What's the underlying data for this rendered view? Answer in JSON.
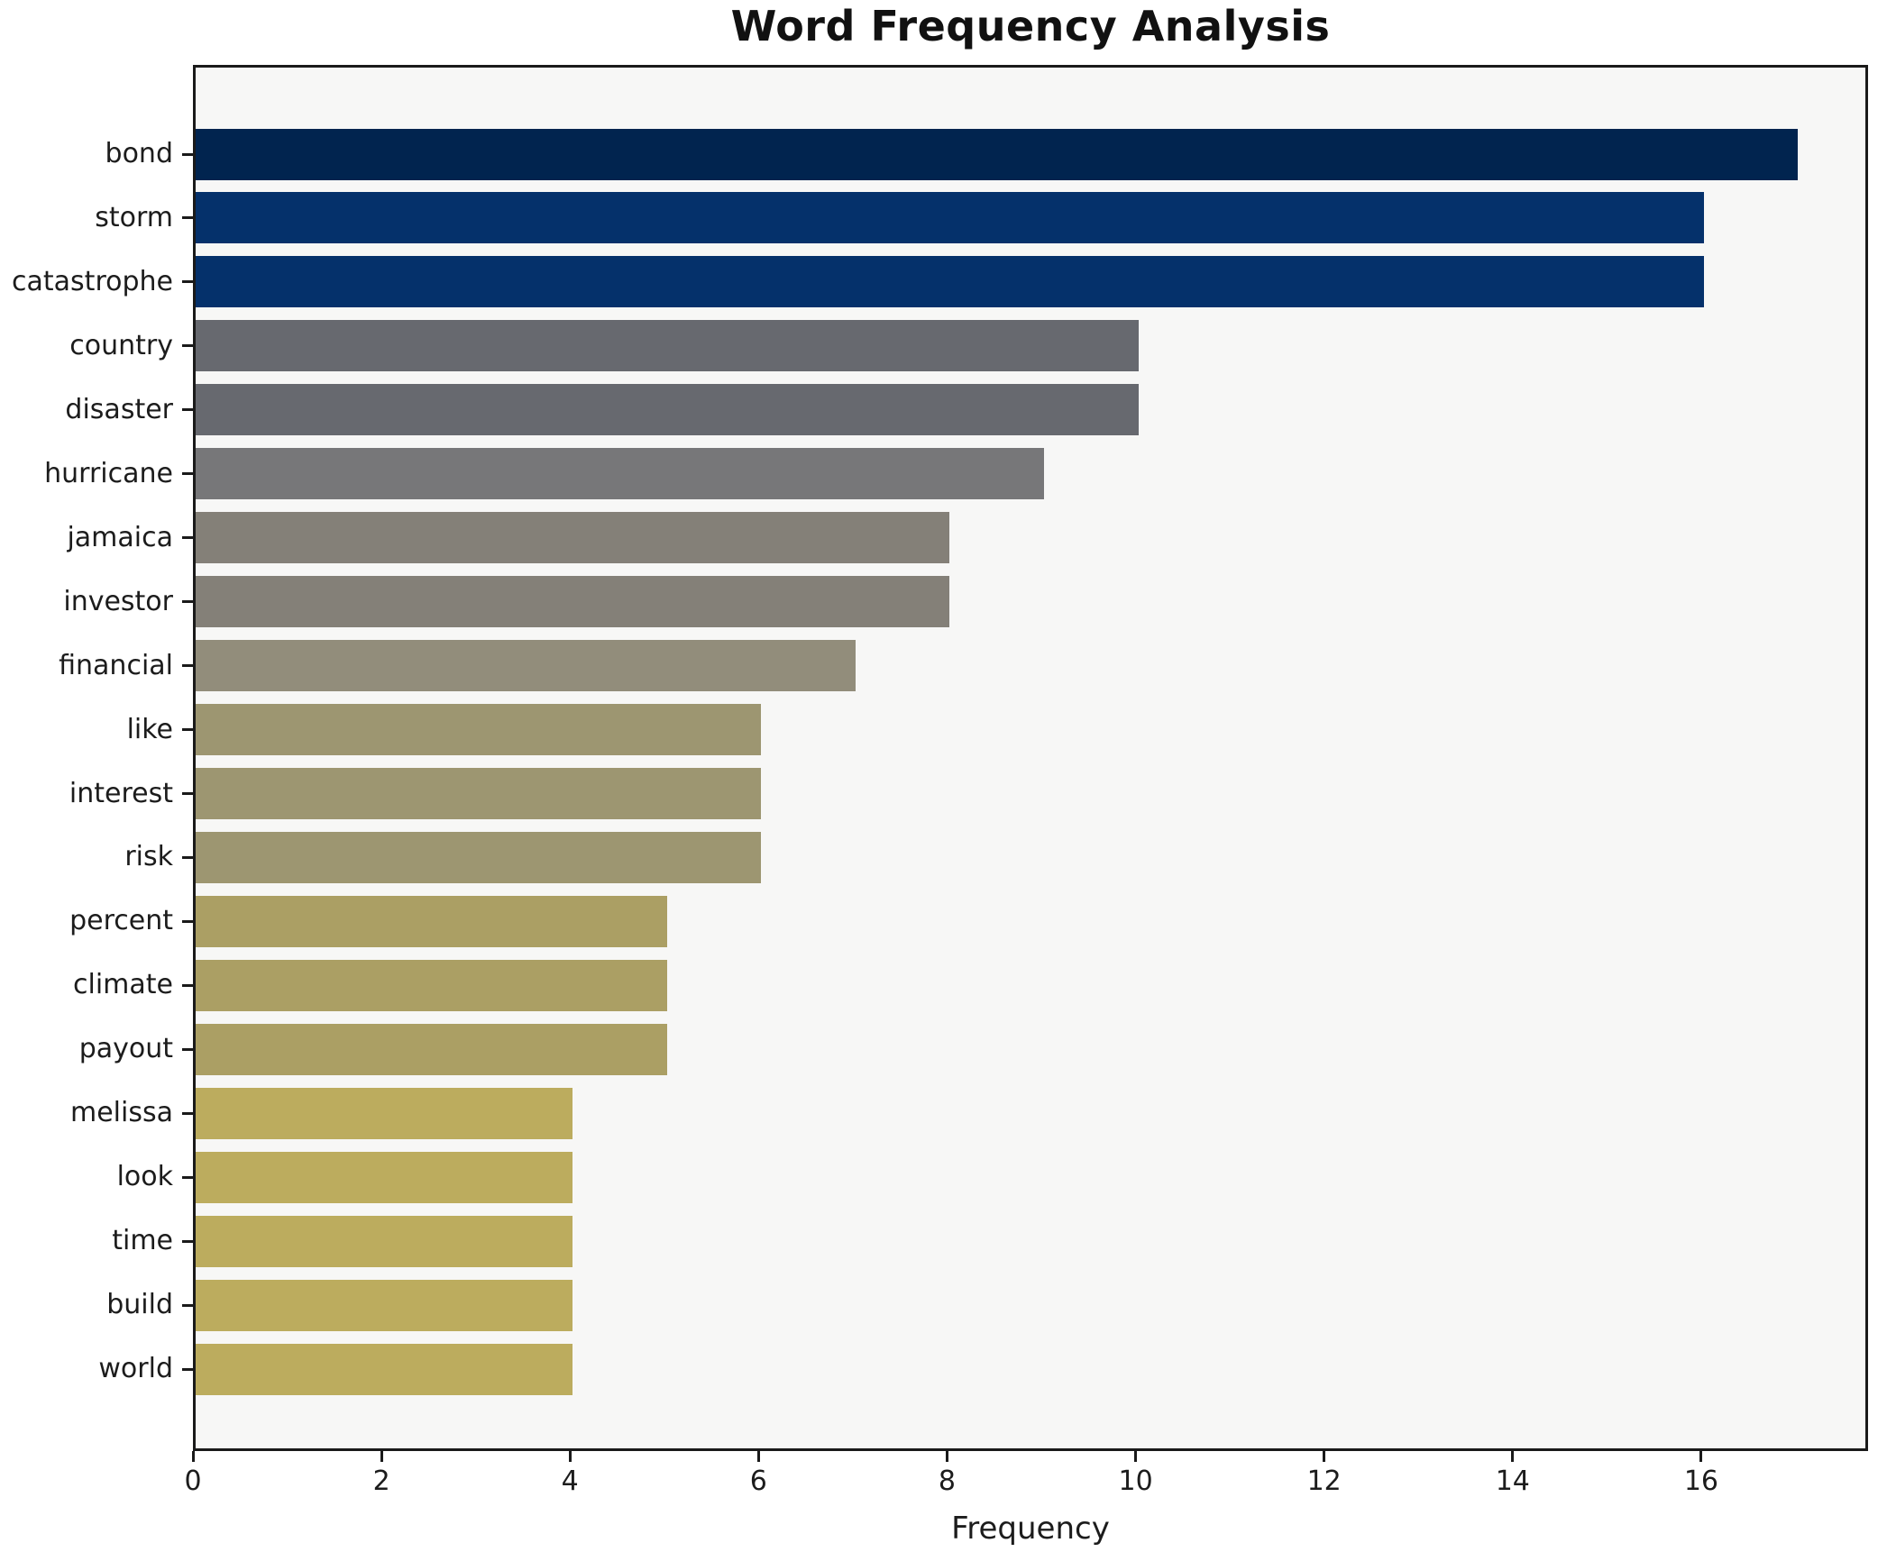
{
  "title": "Word Frequency Analysis",
  "chart_data": {
    "type": "bar",
    "orientation": "horizontal",
    "title": "Word Frequency Analysis",
    "xlabel": "Frequency",
    "ylabel": "",
    "categories": [
      "bond",
      "storm",
      "catastrophe",
      "country",
      "disaster",
      "hurricane",
      "jamaica",
      "investor",
      "financial",
      "like",
      "interest",
      "risk",
      "percent",
      "climate",
      "payout",
      "melissa",
      "look",
      "time",
      "build",
      "world"
    ],
    "values": [
      17,
      16,
      16,
      10,
      10,
      9,
      8,
      8,
      7,
      6,
      6,
      6,
      5,
      5,
      5,
      4,
      4,
      4,
      4,
      4
    ],
    "bar_colors": [
      "#01244f",
      "#05316b",
      "#05316b",
      "#67696f",
      "#67696f",
      "#777779",
      "#848078",
      "#848078",
      "#928d7b",
      "#9d9671",
      "#9d9671",
      "#9d9671",
      "#ab9f64",
      "#ab9f64",
      "#ab9f64",
      "#bcac5e",
      "#bcac5e",
      "#bcac5e",
      "#bcac5e",
      "#bcac5e"
    ],
    "x_ticks": [
      0,
      2,
      4,
      6,
      8,
      10,
      12,
      14,
      16
    ],
    "xlim": [
      0,
      17.77
    ],
    "grid": false,
    "legend": null,
    "colors": {
      "figure_bg": "#ffffff",
      "plot_bg": "#f7f7f6",
      "spine": "#1a1a1a",
      "text": "#1c1c1c"
    }
  }
}
